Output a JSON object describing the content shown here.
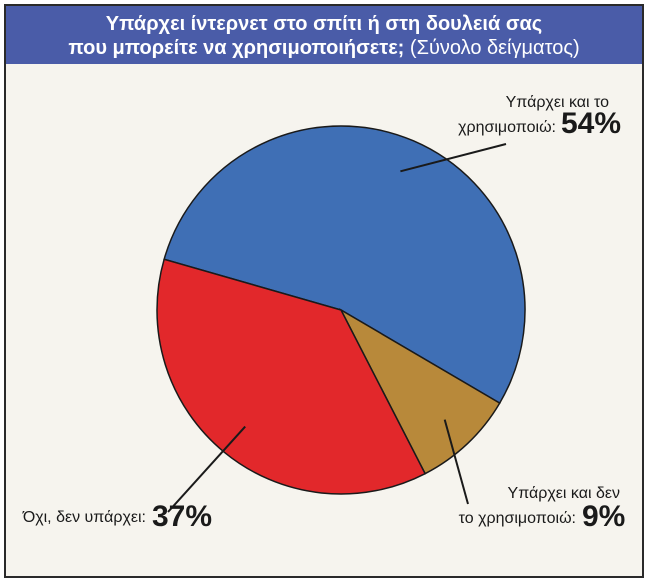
{
  "title": {
    "line1": "Υπάρχει ίντερνετ στο σπίτι ή στη δουλειά σας",
    "line2_bold": "που μπορείτε να χρησιμοποιήσετε;",
    "line2_normal": "(Σύνολο δείγματος)"
  },
  "colors": {
    "title_bg": "#4a5ca8",
    "slice_blue": "#3f6fb5",
    "slice_gold": "#b8893a",
    "slice_red": "#e2282b"
  },
  "chart_data": {
    "type": "pie",
    "title": "Υπάρχει ίντερνετ στο σπίτι ή στη δουλειά σας που μπορείτε να χρησιμοποιήσετε; (Σύνολο δείγματος)",
    "slices": [
      {
        "label_lines": [
          "Υπάρχει και το",
          "χρησιμοποιώ:"
        ],
        "value": 54,
        "value_label": "54%",
        "color": "#3f6fb5"
      },
      {
        "label_lines": [
          "Υπάρχει και δεν",
          "το χρησιμοποιώ:"
        ],
        "value": 9,
        "value_label": "9%",
        "color": "#b8893a"
      },
      {
        "label_lines": [
          "Όχι, δεν υπάρχει:"
        ],
        "value": 37,
        "value_label": "37%",
        "color": "#e2282b"
      }
    ]
  }
}
